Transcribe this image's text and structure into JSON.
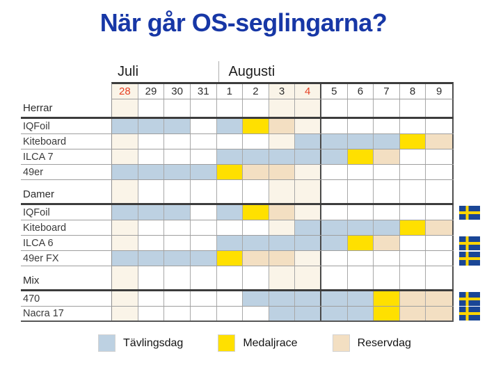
{
  "title": "När går OS-seglingarna?",
  "legend": {
    "items": [
      {
        "label": "Tävlingsdag",
        "code": "T"
      },
      {
        "label": "Medaljrace",
        "code": "M"
      },
      {
        "label": "Reservdag",
        "code": "R"
      }
    ]
  },
  "colors": {
    "competition": "#bdd1e2",
    "medal": "#ffe000",
    "reserve": "#f3dfc2",
    "weekend": "#faf4e8",
    "red_date": "#e64023",
    "title_blue": "#1737a6",
    "flag_blue": "#1a4696",
    "flag_yellow": "#ffd500"
  },
  "chart_data": {
    "type": "gantt-schedule-table",
    "title": "När går OS-seglingarna?",
    "months": [
      {
        "label": "Juli",
        "span": 4
      },
      {
        "label": "Augusti",
        "span": 9
      }
    ],
    "dates": [
      "28",
      "29",
      "30",
      "31",
      "1",
      "2",
      "3",
      "4",
      "5",
      "6",
      "7",
      "8",
      "9"
    ],
    "red_date_cols": [
      0,
      7
    ],
    "weekend_cols": [
      0,
      6,
      7
    ],
    "cell_codes": {
      "T": "Tävlingsdag",
      "M": "Medaljrace",
      "R": "Reservdag",
      "W": "helgmarkering",
      "": "tom dag"
    },
    "sections": [
      {
        "label": "Herrar",
        "rows": [
          {
            "label": "IQFoil",
            "swe_flag": false,
            "cells": [
              "T",
              "T",
              "T",
              "",
              "T",
              "M",
              "R",
              "W",
              "",
              "",
              "",
              "",
              ""
            ]
          },
          {
            "label": "Kiteboard",
            "swe_flag": false,
            "cells": [
              "W",
              "",
              "",
              "",
              "",
              "",
              "W",
              "T",
              "T",
              "T",
              "T",
              "M",
              "R"
            ]
          },
          {
            "label": "ILCA 7",
            "swe_flag": false,
            "cells": [
              "W",
              "",
              "",
              "",
              "T",
              "T",
              "T",
              "T",
              "T",
              "M",
              "R",
              "",
              ""
            ]
          },
          {
            "label": "49er",
            "swe_flag": false,
            "cells": [
              "T",
              "T",
              "T",
              "T",
              "M",
              "R",
              "R",
              "W",
              "",
              "",
              "",
              "",
              ""
            ]
          }
        ]
      },
      {
        "label": "Damer",
        "rows": [
          {
            "label": "IQFoil",
            "swe_flag": true,
            "cells": [
              "T",
              "T",
              "T",
              "",
              "T",
              "M",
              "R",
              "W",
              "",
              "",
              "",
              "",
              ""
            ]
          },
          {
            "label": "Kiteboard",
            "swe_flag": false,
            "cells": [
              "W",
              "",
              "",
              "",
              "",
              "",
              "W",
              "T",
              "T",
              "T",
              "T",
              "M",
              "R"
            ]
          },
          {
            "label": "ILCA 6",
            "swe_flag": true,
            "cells": [
              "W",
              "",
              "",
              "",
              "T",
              "T",
              "T",
              "T",
              "T",
              "M",
              "R",
              "",
              ""
            ]
          },
          {
            "label": "49er FX",
            "swe_flag": true,
            "cells": [
              "T",
              "T",
              "T",
              "T",
              "M",
              "R",
              "R",
              "W",
              "",
              "",
              "",
              "",
              ""
            ]
          }
        ]
      },
      {
        "label": "Mix",
        "rows": [
          {
            "label": "470",
            "swe_flag": true,
            "cells": [
              "W",
              "",
              "",
              "",
              "",
              "T",
              "T",
              "T",
              "T",
              "T",
              "M",
              "R",
              "R"
            ]
          },
          {
            "label": "Nacra 17",
            "swe_flag": true,
            "cells": [
              "W",
              "",
              "",
              "",
              "",
              "",
              "T",
              "T",
              "T",
              "T",
              "M",
              "R",
              "R"
            ]
          }
        ]
      }
    ]
  }
}
